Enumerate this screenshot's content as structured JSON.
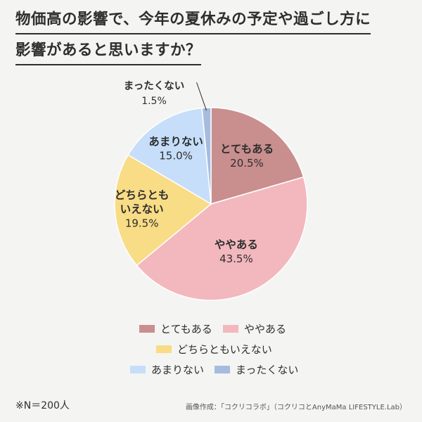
{
  "title_lines": [
    "物価高の影響で、今年の夏休みの予定や過ごし方に",
    "影響があると思いますか？"
  ],
  "chart_data": {
    "type": "pie",
    "unit": "%",
    "slices": [
      {
        "label": "とてもある",
        "value": 20.5,
        "value_text": "20.5%",
        "color": "#c98e8e"
      },
      {
        "label": "ややある",
        "value": 43.5,
        "value_text": "43.5%",
        "color": "#f2b8be"
      },
      {
        "label": "どちらともいえない",
        "label_lines": [
          "どちらとも",
          "いえない"
        ],
        "value": 19.5,
        "value_text": "19.5%",
        "color": "#f8dc86"
      },
      {
        "label": "あまりない",
        "value": 15.0,
        "value_text": "15.0%",
        "color": "#c6defa"
      },
      {
        "label": "まったくない",
        "value": 1.5,
        "value_text": "1.5%",
        "color": "#a5bcdf"
      }
    ],
    "legend": [
      "とてもある",
      "ややある",
      "どちらともいえない",
      "あまりない",
      "まったくない"
    ]
  },
  "footnote": "※N＝200人",
  "credit": "画像作成：「コクリコラボ」（コクリコとAnyMaMa LIFESTYLE.Lab）"
}
